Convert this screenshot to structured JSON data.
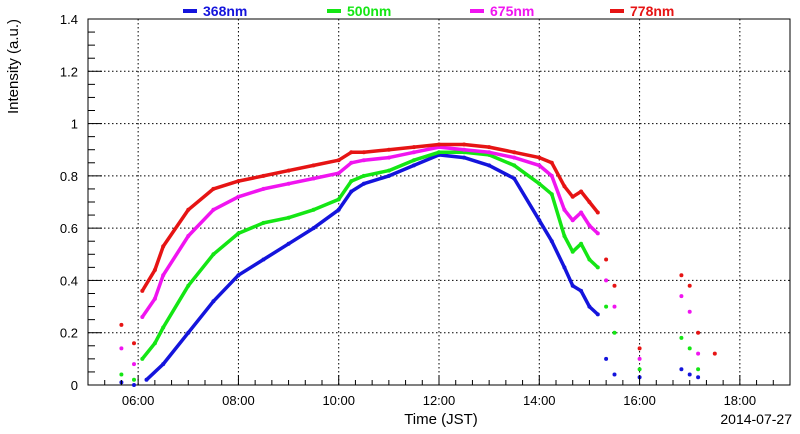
{
  "chart_data": {
    "type": "scatter",
    "title": "",
    "xlabel": "Time (JST)",
    "ylabel": "Intensity (a.u.)",
    "date": "2014-07-27",
    "xlim": [
      "05:00",
      "19:00"
    ],
    "ylim": [
      0,
      1.4
    ],
    "grid": true,
    "legend_position": "top",
    "x_ticks": [
      "06:00",
      "08:00",
      "10:00",
      "12:00",
      "14:00",
      "16:00",
      "18:00"
    ],
    "y_ticks": [
      "0",
      "0.2",
      "0.4",
      "0.6",
      "0.8",
      "1",
      "1.2",
      "1.4"
    ],
    "series": [
      {
        "name": "368nm",
        "color": "#1414dc",
        "points": [
          [
            "05:40",
            0.01
          ],
          [
            "05:55",
            0.0
          ],
          [
            "06:10",
            0.02
          ],
          [
            "06:30",
            0.08
          ],
          [
            "07:00",
            0.2
          ],
          [
            "07:30",
            0.32
          ],
          [
            "08:00",
            0.42
          ],
          [
            "08:30",
            0.48
          ],
          [
            "09:00",
            0.54
          ],
          [
            "09:30",
            0.6
          ],
          [
            "10:00",
            0.67
          ],
          [
            "10:15",
            0.74
          ],
          [
            "10:30",
            0.77
          ],
          [
            "11:00",
            0.8
          ],
          [
            "11:30",
            0.84
          ],
          [
            "12:00",
            0.88
          ],
          [
            "12:30",
            0.87
          ],
          [
            "13:00",
            0.84
          ],
          [
            "13:30",
            0.79
          ],
          [
            "14:00",
            0.63
          ],
          [
            "14:15",
            0.55
          ],
          [
            "14:30",
            0.45
          ],
          [
            "14:40",
            0.38
          ],
          [
            "14:50",
            0.36
          ],
          [
            "15:00",
            0.3
          ],
          [
            "15:10",
            0.27
          ],
          [
            "15:20",
            0.1
          ],
          [
            "15:30",
            0.04
          ],
          [
            "16:00",
            0.03
          ],
          [
            "16:50",
            0.06
          ],
          [
            "17:00",
            0.04
          ],
          [
            "17:10",
            0.03
          ]
        ]
      },
      {
        "name": "500nm",
        "color": "#14e614",
        "points": [
          [
            "05:40",
            0.04
          ],
          [
            "05:55",
            0.02
          ],
          [
            "06:05",
            0.1
          ],
          [
            "06:20",
            0.16
          ],
          [
            "06:30",
            0.22
          ],
          [
            "07:00",
            0.38
          ],
          [
            "07:30",
            0.5
          ],
          [
            "08:00",
            0.58
          ],
          [
            "08:30",
            0.62
          ],
          [
            "09:00",
            0.64
          ],
          [
            "09:30",
            0.67
          ],
          [
            "10:00",
            0.71
          ],
          [
            "10:15",
            0.78
          ],
          [
            "10:30",
            0.8
          ],
          [
            "11:00",
            0.82
          ],
          [
            "11:30",
            0.86
          ],
          [
            "12:00",
            0.89
          ],
          [
            "12:30",
            0.89
          ],
          [
            "13:00",
            0.88
          ],
          [
            "13:30",
            0.84
          ],
          [
            "14:00",
            0.77
          ],
          [
            "14:15",
            0.73
          ],
          [
            "14:30",
            0.57
          ],
          [
            "14:40",
            0.51
          ],
          [
            "14:50",
            0.54
          ],
          [
            "15:00",
            0.48
          ],
          [
            "15:10",
            0.45
          ],
          [
            "15:20",
            0.3
          ],
          [
            "15:30",
            0.2
          ],
          [
            "16:00",
            0.06
          ],
          [
            "16:50",
            0.18
          ],
          [
            "17:00",
            0.14
          ],
          [
            "17:10",
            0.06
          ]
        ]
      },
      {
        "name": "675nm",
        "color": "#f014f0",
        "points": [
          [
            "05:40",
            0.14
          ],
          [
            "05:55",
            0.08
          ],
          [
            "06:05",
            0.26
          ],
          [
            "06:20",
            0.33
          ],
          [
            "06:30",
            0.42
          ],
          [
            "07:00",
            0.57
          ],
          [
            "07:30",
            0.67
          ],
          [
            "08:00",
            0.72
          ],
          [
            "08:30",
            0.75
          ],
          [
            "09:00",
            0.77
          ],
          [
            "09:30",
            0.79
          ],
          [
            "10:00",
            0.81
          ],
          [
            "10:15",
            0.85
          ],
          [
            "10:30",
            0.86
          ],
          [
            "11:00",
            0.87
          ],
          [
            "11:30",
            0.89
          ],
          [
            "12:00",
            0.91
          ],
          [
            "12:30",
            0.9
          ],
          [
            "13:00",
            0.89
          ],
          [
            "13:30",
            0.87
          ],
          [
            "14:00",
            0.84
          ],
          [
            "14:15",
            0.8
          ],
          [
            "14:30",
            0.67
          ],
          [
            "14:40",
            0.63
          ],
          [
            "14:50",
            0.66
          ],
          [
            "15:00",
            0.61
          ],
          [
            "15:10",
            0.58
          ],
          [
            "15:20",
            0.4
          ],
          [
            "15:30",
            0.3
          ],
          [
            "16:00",
            0.1
          ],
          [
            "16:50",
            0.34
          ],
          [
            "17:00",
            0.28
          ],
          [
            "17:10",
            0.12
          ]
        ]
      },
      {
        "name": "778nm",
        "color": "#e61414",
        "points": [
          [
            "05:40",
            0.23
          ],
          [
            "05:55",
            0.16
          ],
          [
            "06:05",
            0.36
          ],
          [
            "06:20",
            0.44
          ],
          [
            "06:30",
            0.53
          ],
          [
            "07:00",
            0.67
          ],
          [
            "07:30",
            0.75
          ],
          [
            "08:00",
            0.78
          ],
          [
            "08:30",
            0.8
          ],
          [
            "09:00",
            0.82
          ],
          [
            "09:30",
            0.84
          ],
          [
            "10:00",
            0.86
          ],
          [
            "10:15",
            0.89
          ],
          [
            "10:30",
            0.89
          ],
          [
            "11:00",
            0.9
          ],
          [
            "11:30",
            0.91
          ],
          [
            "12:00",
            0.92
          ],
          [
            "12:30",
            0.92
          ],
          [
            "13:00",
            0.91
          ],
          [
            "13:30",
            0.89
          ],
          [
            "14:00",
            0.87
          ],
          [
            "14:15",
            0.85
          ],
          [
            "14:30",
            0.76
          ],
          [
            "14:40",
            0.72
          ],
          [
            "14:50",
            0.74
          ],
          [
            "15:00",
            0.7
          ],
          [
            "15:10",
            0.66
          ],
          [
            "15:20",
            0.48
          ],
          [
            "15:30",
            0.38
          ],
          [
            "16:00",
            0.14
          ],
          [
            "16:50",
            0.42
          ],
          [
            "17:00",
            0.38
          ],
          [
            "17:10",
            0.2
          ],
          [
            "17:30",
            0.12
          ]
        ]
      }
    ]
  }
}
